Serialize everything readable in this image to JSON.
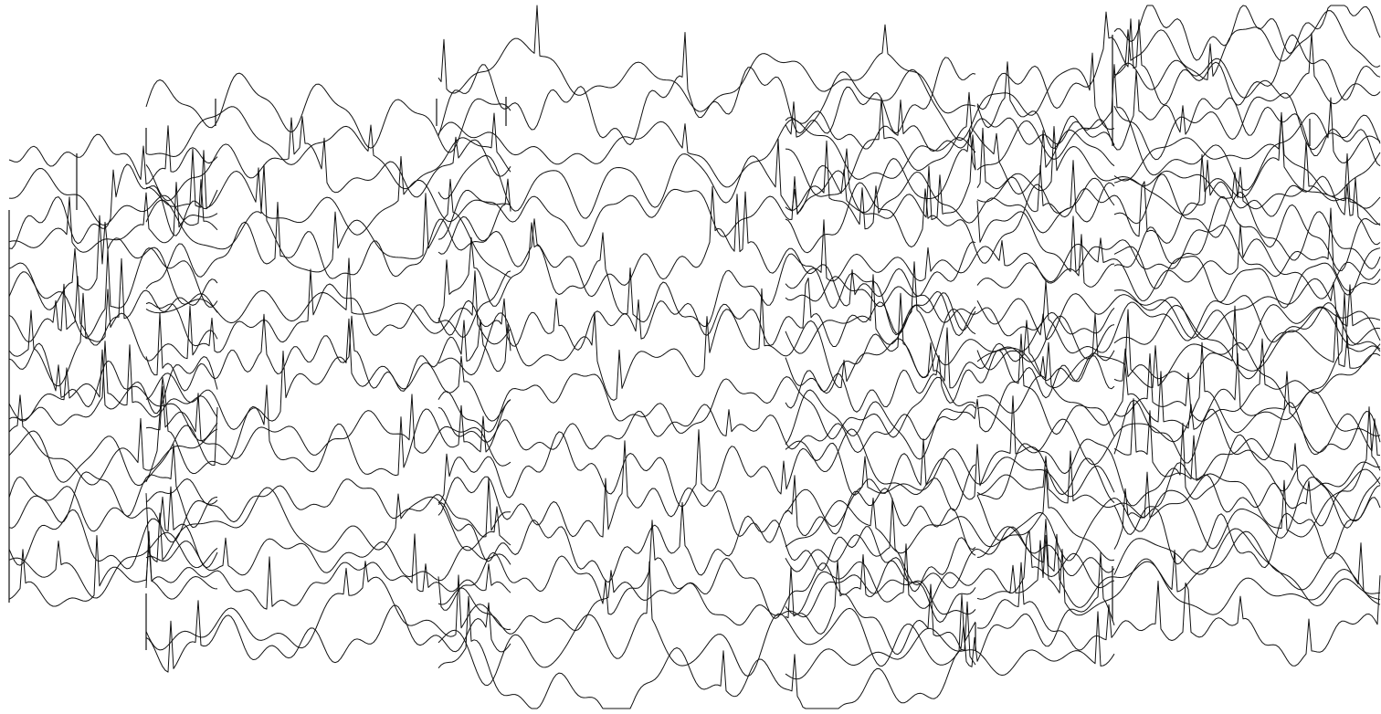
{
  "line_color": "#111111",
  "background_color": "#ffffff",
  "clusters": [
    {
      "id": "cluster-1",
      "trace_count": 18
    },
    {
      "id": "cluster-2",
      "trace_count": 18
    },
    {
      "id": "cluster-3",
      "trace_count": 18
    },
    {
      "id": "cluster-4",
      "trace_count": 18
    },
    {
      "id": "cluster-5",
      "trace_count": 18
    },
    {
      "id": "cluster-6",
      "trace_count": 18
    }
  ]
}
